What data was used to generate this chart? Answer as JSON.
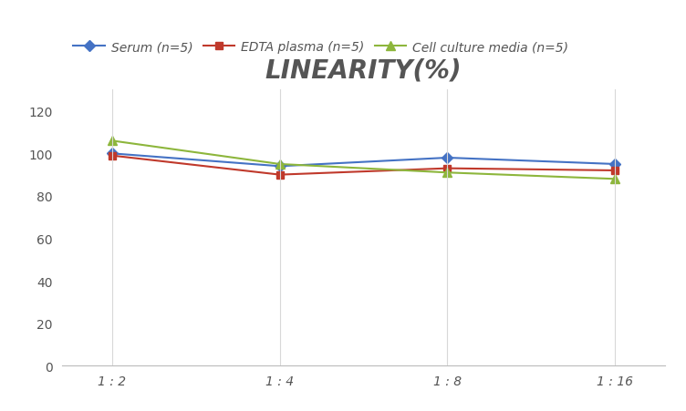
{
  "title": "LINEARITY(%)",
  "x_labels": [
    "1 : 2",
    "1 : 4",
    "1 : 8",
    "1 : 16"
  ],
  "x_positions": [
    0,
    1,
    2,
    3
  ],
  "series": [
    {
      "label": "Serum (n=5)",
      "values": [
        100,
        94,
        98,
        95
      ],
      "color": "#4472C4",
      "marker": "D",
      "markersize": 6
    },
    {
      "label": "EDTA plasma (n=5)",
      "values": [
        99,
        90,
        93,
        92
      ],
      "color": "#C0392B",
      "marker": "s",
      "markersize": 6
    },
    {
      "label": "Cell culture media (n=5)",
      "values": [
        106,
        95,
        91,
        88
      ],
      "color": "#8DB63C",
      "marker": "^",
      "markersize": 7
    }
  ],
  "ylim": [
    0,
    130
  ],
  "yticks": [
    0,
    20,
    40,
    60,
    80,
    100,
    120
  ],
  "background_color": "#FFFFFF",
  "title_fontsize": 20,
  "legend_fontsize": 10,
  "tick_fontsize": 10,
  "grid_color": "#D8D8D8",
  "title_color": "#555555"
}
